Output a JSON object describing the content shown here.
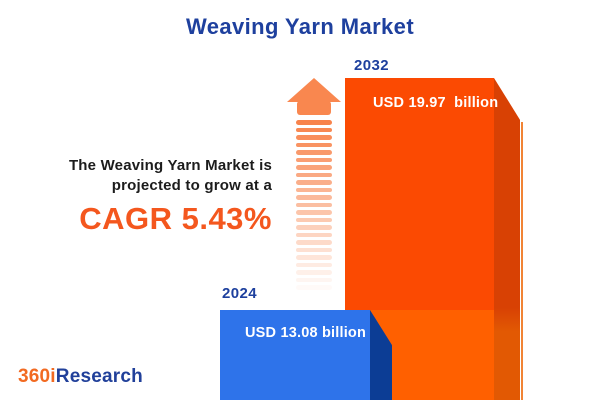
{
  "page": {
    "title": "Weaving Yarn Market"
  },
  "annotation": {
    "line1": "The Weaving Yarn Market is",
    "line2": "projected to grow at a",
    "cagr": "CAGR 5.43%"
  },
  "bars": {
    "y2032": {
      "year": "2032",
      "value_label": "USD 19.97  billion"
    },
    "y2024": {
      "year": "2024",
      "value_label": "USD 13.08 billion"
    }
  },
  "logo": {
    "prefix": "360i",
    "suffix": "Research"
  },
  "colors": {
    "title_blue": "#1E409E",
    "cagr_orange": "#F4571E",
    "text_dark": "#1C1C1C",
    "bar_2032_face_top": "#FB4A02",
    "bar_2032_face_bottom": "#FF6000",
    "bar_2032_side_top": "#D84104",
    "bar_2032_side_bottom": "#E25903",
    "bar_2024_face": "#2E73EA",
    "bar_2024_side": "#0C3D95",
    "arrow_orange": "#F9874F",
    "logo_orange": "#F26A21",
    "logo_blue": "#21409A",
    "background": "#FFFFFF"
  },
  "chart_data": {
    "type": "bar",
    "title": "Weaving Yarn Market",
    "categories": [
      "2024",
      "2032"
    ],
    "values": [
      13.08,
      19.97
    ],
    "unit": "USD billion",
    "value_labels": [
      "USD 13.08 billion",
      "USD 19.97 billion"
    ],
    "cagr_percent": 5.43,
    "annotation": "The Weaving Yarn Market is projected to grow at a CAGR 5.43%",
    "legend_position": "none",
    "grid": false,
    "bar_colors": [
      "#2E73EA",
      "#FB4A02"
    ]
  }
}
